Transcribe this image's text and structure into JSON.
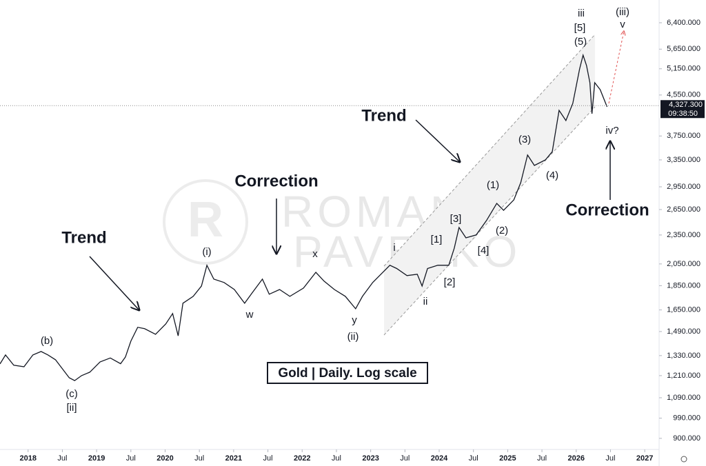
{
  "chart_data": {
    "type": "line",
    "title": "Gold | Daily. Log scale",
    "log_scale": true,
    "grid": false,
    "xlim": [
      2017.59,
      2027.21
    ],
    "ylim": [
      854,
      7125
    ],
    "xticks": [
      {
        "value": 2018,
        "label": "2018"
      },
      {
        "value": 2018.5,
        "label": "Jul"
      },
      {
        "value": 2019,
        "label": "2019"
      },
      {
        "value": 2019.5,
        "label": "Jul"
      },
      {
        "value": 2020,
        "label": "2020"
      },
      {
        "value": 2020.5,
        "label": "Jul"
      },
      {
        "value": 2021,
        "label": "2021"
      },
      {
        "value": 2021.5,
        "label": "Jul"
      },
      {
        "value": 2022,
        "label": "2022"
      },
      {
        "value": 2022.5,
        "label": "Jul"
      },
      {
        "value": 2023,
        "label": "2023"
      },
      {
        "value": 2023.5,
        "label": "Jul"
      },
      {
        "value": 2024,
        "label": "2024"
      },
      {
        "value": 2024.5,
        "label": "Jul"
      },
      {
        "value": 2025,
        "label": "2025"
      },
      {
        "value": 2025.5,
        "label": "Jul"
      },
      {
        "value": 2026,
        "label": "2026"
      },
      {
        "value": 2026.5,
        "label": "Jul"
      },
      {
        "value": 2027,
        "label": "2027"
      }
    ],
    "yticks": [
      {
        "value": 900,
        "label": "900.000"
      },
      {
        "value": 990,
        "label": "990.000"
      },
      {
        "value": 1090,
        "label": "1,090.000"
      },
      {
        "value": 1210,
        "label": "1,210.000"
      },
      {
        "value": 1330,
        "label": "1,330.000"
      },
      {
        "value": 1490,
        "label": "1,490.000"
      },
      {
        "value": 1650,
        "label": "1,650.000"
      },
      {
        "value": 1850,
        "label": "1,850.000"
      },
      {
        "value": 2050,
        "label": "2,050.000"
      },
      {
        "value": 2350,
        "label": "2,350.000"
      },
      {
        "value": 2650,
        "label": "2,650.000"
      },
      {
        "value": 2950,
        "label": "2,950.000"
      },
      {
        "value": 3350,
        "label": "3,350.000"
      },
      {
        "value": 3750,
        "label": "3,750.000"
      },
      {
        "value": 4550,
        "label": "4,550.000"
      },
      {
        "value": 5150,
        "label": "5,150.000"
      },
      {
        "value": 5650,
        "label": "5,650.000"
      },
      {
        "value": 6400,
        "label": "6,400.000"
      }
    ],
    "last_price": {
      "value": 4327.3,
      "label": "4,327.300"
    },
    "countdown": "09:38:50",
    "watermark": [
      "ROMAN",
      "PAVELKO"
    ],
    "series": [
      {
        "name": "Gold",
        "color": "#131722",
        "x": [
          2017.59,
          2017.67,
          2017.79,
          2017.94,
          2018.07,
          2018.19,
          2018.29,
          2018.4,
          2018.5,
          2018.6,
          2018.68,
          2018.78,
          2018.9,
          2019.05,
          2019.2,
          2019.35,
          2019.42,
          2019.5,
          2019.6,
          2019.7,
          2019.86,
          2020.01,
          2020.11,
          2020.19,
          2020.26,
          2020.41,
          2020.53,
          2020.61,
          2020.71,
          2020.86,
          2021.01,
          2021.16,
          2021.27,
          2021.42,
          2021.52,
          2021.67,
          2021.82,
          2022.02,
          2022.2,
          2022.32,
          2022.47,
          2022.63,
          2022.78,
          2022.88,
          2023.03,
          2023.13,
          2023.28,
          2023.38,
          2023.53,
          2023.68,
          2023.75,
          2023.83,
          2023.98,
          2024.14,
          2024.22,
          2024.29,
          2024.39,
          2024.54,
          2024.69,
          2024.84,
          2024.94,
          2025.09,
          2025.19,
          2025.29,
          2025.39,
          2025.55,
          2025.65,
          2025.75,
          2025.85,
          2025.95,
          2026.05,
          2026.1,
          2026.15,
          2026.2,
          2026.23,
          2026.27,
          2026.35,
          2026.45
        ],
        "values": [
          1279,
          1334,
          1271,
          1262,
          1334,
          1356,
          1334,
          1304,
          1250,
          1198,
          1182,
          1210,
          1230,
          1291,
          1315,
          1280,
          1321,
          1424,
          1520,
          1510,
          1471,
          1545,
          1622,
          1460,
          1703,
          1759,
          1847,
          2037,
          1908,
          1878,
          1817,
          1703,
          1788,
          1908,
          1777,
          1817,
          1759,
          1829,
          1971,
          1890,
          1817,
          1759,
          1659,
          1759,
          1878,
          1940,
          2037,
          2006,
          1940,
          1953,
          1847,
          2006,
          2037,
          2037,
          2209,
          2435,
          2319,
          2351,
          2516,
          2728,
          2640,
          2774,
          3009,
          3427,
          3263,
          3349,
          3482,
          4232,
          4033,
          4374,
          5147,
          5492,
          5231,
          4823,
          4165,
          4823,
          4668,
          4303
        ]
      }
    ],
    "annotations": [
      "(b)",
      "(c)",
      "[ii]",
      "Trend",
      "(i)",
      "Correction",
      "w",
      "x",
      "y",
      "(ii)",
      "i",
      "ii",
      "[1]",
      "[2]",
      "[3]",
      "[4]",
      "(1)",
      "(2)",
      "(3)",
      "(4)",
      "Trend",
      "iii",
      "[5]",
      "(5)",
      "(iii)",
      "v",
      "iv?",
      "Correction"
    ]
  }
}
